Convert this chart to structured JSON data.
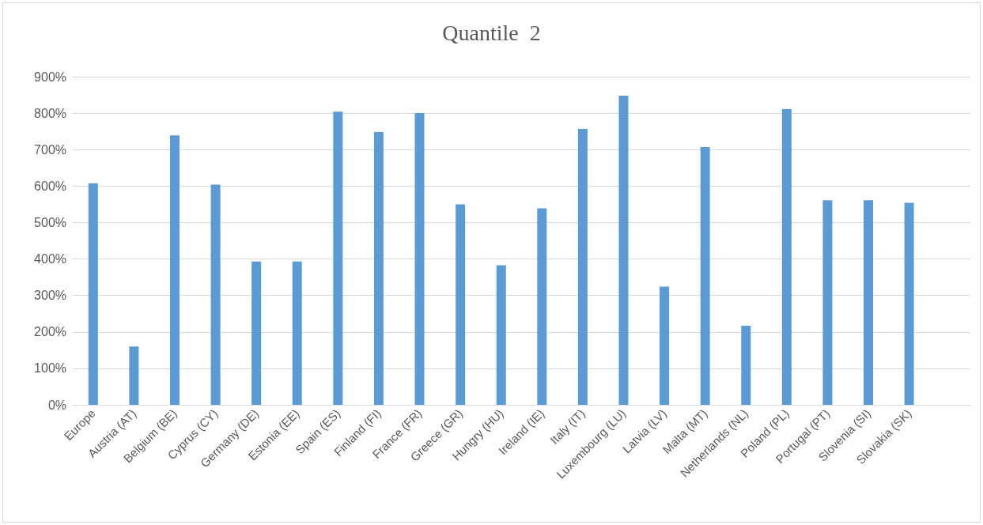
{
  "chart_data": {
    "type": "bar",
    "title": "Quantile  2",
    "categories": [
      "Europe",
      "Austria (AT)",
      "Belgium (BE)",
      "Cyprus (CY)",
      "Germany (DE)",
      "Estonia (EE)",
      "Spain (ES)",
      "Finland (FI)",
      "France (FR)",
      "Greece (GR)",
      "Hungry (HU)",
      "Ireland (IE)",
      "Italy (IT)",
      "Luxembourg (LU)",
      "Latvia (LV)",
      "Malta (MT)",
      "Netherlands (NL)",
      "Poland (PL)",
      "Portugal (PT)",
      "Slovenia (SI)",
      "Slovakia (SK)",
      null
    ],
    "values": [
      608,
      160,
      739,
      604,
      393,
      393,
      804,
      748,
      800,
      550,
      383,
      539,
      757,
      848,
      324,
      707,
      217,
      811,
      561,
      561,
      554,
      null
    ],
    "color": "#5b9bd5",
    "ylim": [
      0,
      900
    ],
    "yticks": [
      {
        "value": 0,
        "label": "0%"
      },
      {
        "value": 100,
        "label": "100%"
      },
      {
        "value": 200,
        "label": "200%"
      },
      {
        "value": 300,
        "label": "300%"
      },
      {
        "value": 400,
        "label": "400%"
      },
      {
        "value": 500,
        "label": "500%"
      },
      {
        "value": 600,
        "label": "600%"
      },
      {
        "value": 700,
        "label": "700%"
      },
      {
        "value": 800,
        "label": "800%"
      },
      {
        "value": 900,
        "label": "900%"
      }
    ],
    "grid": "y"
  }
}
